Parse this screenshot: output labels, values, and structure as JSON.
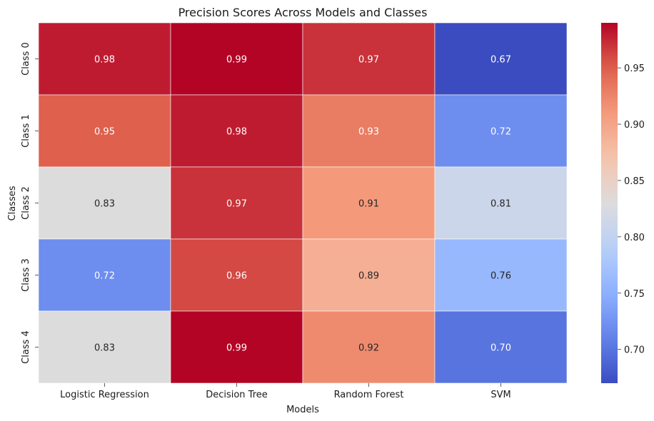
{
  "chart_data": {
    "type": "heatmap",
    "title": "Precision Scores Across Models and Classes",
    "xlabel": "Models",
    "ylabel": "Classes",
    "x_categories": [
      "Logistic Regression",
      "Decision Tree",
      "Random Forest",
      "SVM"
    ],
    "y_categories": [
      "Class 0",
      "Class 1",
      "Class 2",
      "Class 3",
      "Class 4"
    ],
    "values": [
      [
        0.98,
        0.99,
        0.97,
        0.67
      ],
      [
        0.95,
        0.98,
        0.93,
        0.72
      ],
      [
        0.83,
        0.97,
        0.91,
        0.81
      ],
      [
        0.72,
        0.96,
        0.89,
        0.76
      ],
      [
        0.83,
        0.99,
        0.92,
        0.7
      ]
    ],
    "colormap": "coolwarm",
    "vmin": 0.67,
    "vmax": 0.99,
    "colorbar_ticks": [
      "0.70",
      "0.75",
      "0.80",
      "0.85",
      "0.90",
      "0.95"
    ],
    "grid": false,
    "annotations_format": "0.00"
  }
}
